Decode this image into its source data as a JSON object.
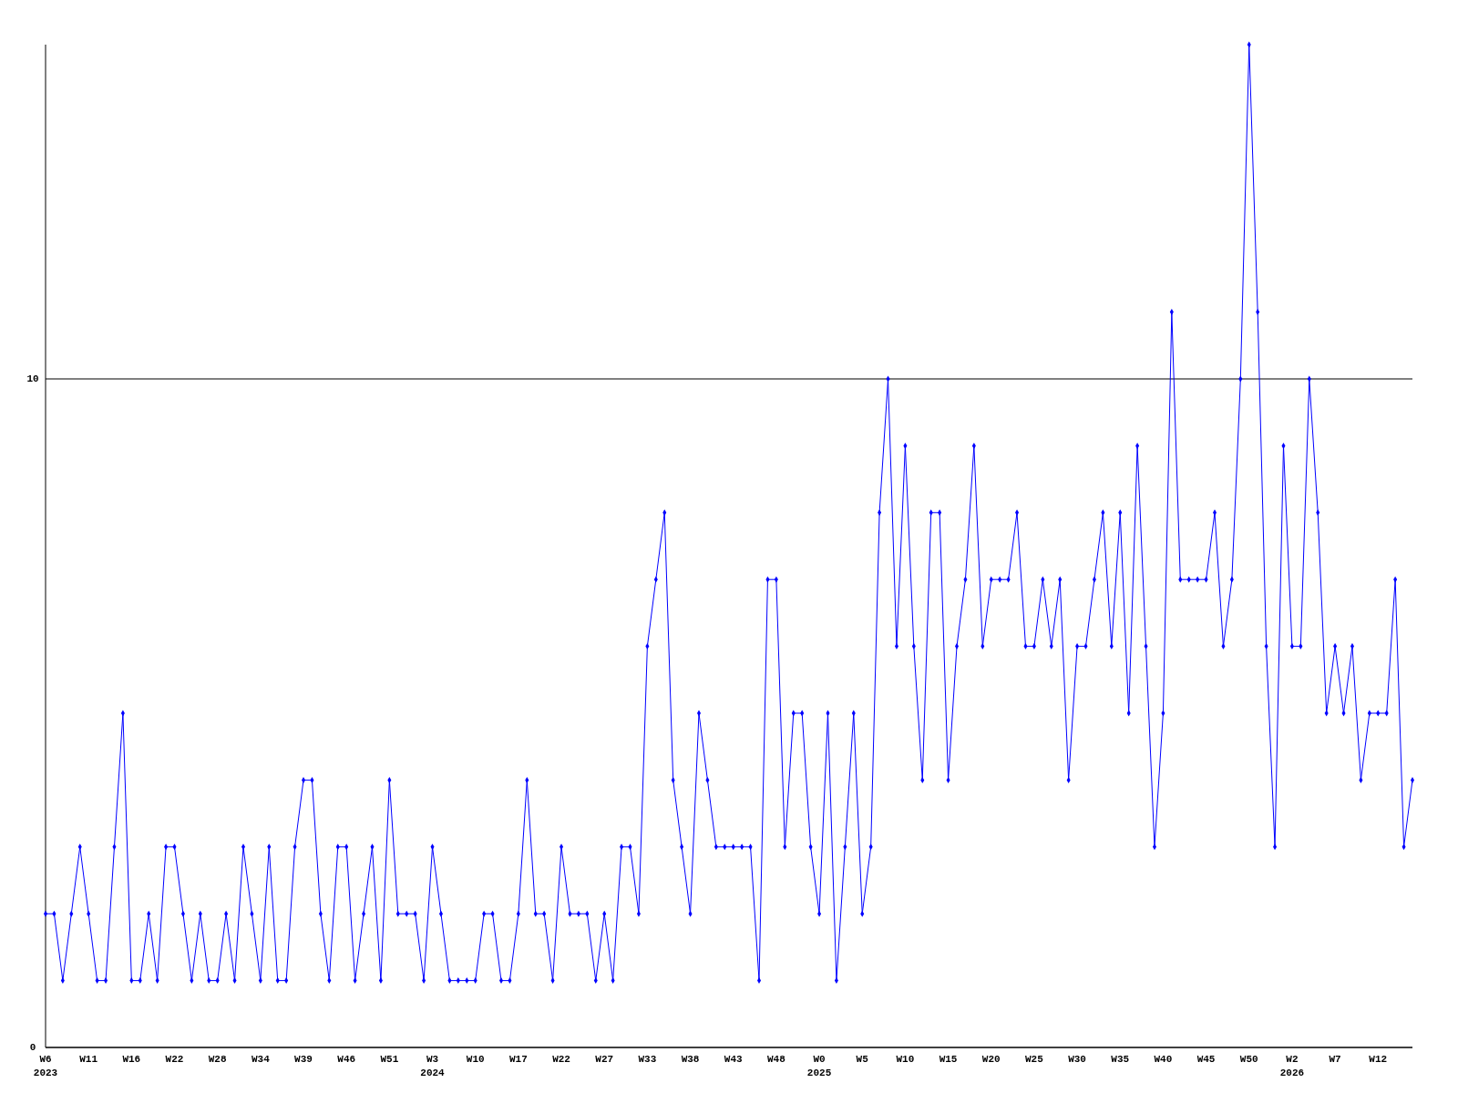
{
  "chart_data": {
    "type": "line",
    "categories": [
      "W6\n2023",
      null,
      null,
      null,
      null,
      "W11",
      null,
      null,
      null,
      null,
      "W16",
      null,
      null,
      null,
      null,
      "W22",
      null,
      null,
      null,
      null,
      "W28",
      null,
      null,
      null,
      null,
      "W34",
      null,
      null,
      null,
      null,
      "W39",
      null,
      null,
      null,
      null,
      "W46",
      null,
      null,
      null,
      null,
      "W51",
      null,
      null,
      null,
      null,
      "W3\n2024",
      null,
      null,
      null,
      null,
      "W10",
      null,
      null,
      null,
      null,
      "W17",
      null,
      null,
      null,
      null,
      "W22",
      null,
      null,
      null,
      null,
      "W27",
      null,
      null,
      null,
      null,
      "W33",
      null,
      null,
      null,
      null,
      "W38",
      null,
      null,
      null,
      null,
      "W43",
      null,
      null,
      null,
      null,
      "W48",
      null,
      null,
      null,
      null,
      "W0\n2025",
      null,
      null,
      null,
      null,
      "W5",
      null,
      null,
      null,
      null,
      "W10",
      null,
      null,
      null,
      null,
      "W15",
      null,
      null,
      null,
      null,
      "W20",
      null,
      null,
      null,
      null,
      "W25",
      null,
      null,
      null,
      null,
      "W30",
      null,
      null,
      null,
      null,
      "W35",
      null,
      null,
      null,
      null,
      "W40",
      null,
      null,
      null,
      null,
      "W45",
      null,
      null,
      null,
      null,
      "W50",
      null,
      null,
      null,
      null,
      "W2\n2026",
      null,
      null,
      null,
      null,
      "W7",
      null,
      null,
      null,
      null,
      "W12",
      null,
      null,
      null,
      null
    ],
    "series": [
      {
        "color": "#0000ff",
        "values": [
          2,
          2,
          1,
          2,
          3,
          2,
          1,
          1,
          3,
          5,
          1,
          1,
          2,
          1,
          3,
          3,
          2,
          1,
          2,
          1,
          1,
          2,
          1,
          3,
          2,
          1,
          3,
          1,
          1,
          3,
          4,
          4,
          2,
          1,
          3,
          3,
          1,
          2,
          3,
          1,
          4,
          2,
          2,
          2,
          1,
          3,
          2,
          1,
          1,
          1,
          1,
          2,
          2,
          1,
          1,
          2,
          4,
          2,
          2,
          1,
          3,
          2,
          2,
          2,
          1,
          2,
          1,
          3,
          3,
          2,
          6,
          7,
          8,
          4,
          3,
          2,
          5,
          4,
          3,
          3,
          3,
          3,
          3,
          1,
          7,
          7,
          3,
          5,
          5,
          3,
          2,
          5,
          1,
          3,
          5,
          2,
          3,
          8,
          10,
          6,
          9,
          6,
          4,
          8,
          8,
          4,
          6,
          7,
          9,
          6,
          7,
          7,
          7,
          8,
          6,
          6,
          7,
          6,
          7,
          4,
          6,
          6,
          7,
          8,
          6,
          8,
          5,
          9,
          6,
          3,
          5,
          11,
          7,
          7,
          7,
          7,
          8,
          6,
          7,
          10,
          15,
          11,
          6,
          3,
          9,
          6,
          6,
          10,
          8,
          5,
          6,
          5,
          6,
          4,
          5,
          5,
          5,
          7,
          3,
          4
        ]
      }
    ],
    "ylim": [
      0,
      15
    ],
    "yticks": [
      0,
      10
    ],
    "grid": "y",
    "marker": "diamond",
    "line_style": "solid"
  }
}
